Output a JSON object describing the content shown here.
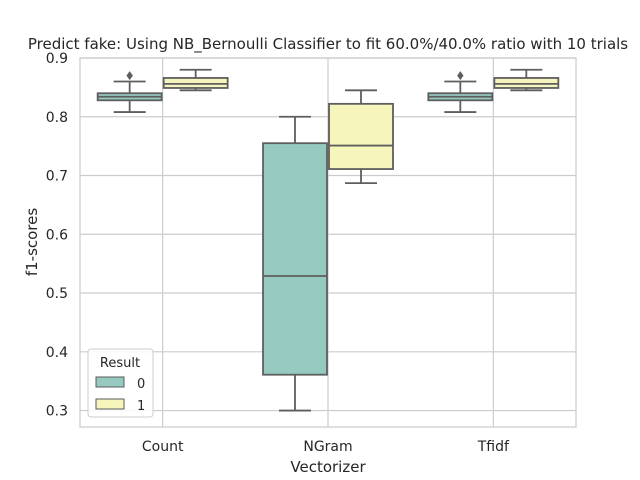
{
  "chart_data": {
    "type": "box",
    "title": "Predict fake: Using NB_Bernoulli Classifier to fit 60.0%/40.0% ratio with 10 trials",
    "xlabel": "Vectorizer",
    "ylabel": "f1-scores",
    "categories": [
      "Count",
      "NGram",
      "Tfidf"
    ],
    "ylim": [
      0.272,
      0.9
    ],
    "yticks": [
      "0.3",
      "0.4",
      "0.5",
      "0.6",
      "0.7",
      "0.8",
      "0.9"
    ],
    "grid": true,
    "legend": {
      "title": "Result",
      "placement": "lower-left"
    },
    "series": [
      {
        "name": "0",
        "color": "#96cac1",
        "boxes": [
          {
            "whisker_low": 0.808,
            "q1": 0.828,
            "median": 0.834,
            "q3": 0.84,
            "whisker_high": 0.86,
            "outliers": [
              0.87
            ]
          },
          {
            "whisker_low": 0.3,
            "q1": 0.361,
            "median": 0.529,
            "q3": 0.755,
            "whisker_high": 0.8,
            "outliers": []
          },
          {
            "whisker_low": 0.808,
            "q1": 0.828,
            "median": 0.834,
            "q3": 0.84,
            "whisker_high": 0.86,
            "outliers": [
              0.87
            ]
          }
        ]
      },
      {
        "name": "1",
        "color": "#f6f6bc",
        "boxes": [
          {
            "whisker_low": 0.845,
            "q1": 0.849,
            "median": 0.856,
            "q3": 0.866,
            "whisker_high": 0.88,
            "outliers": []
          },
          {
            "whisker_low": 0.687,
            "q1": 0.711,
            "median": 0.751,
            "q3": 0.822,
            "whisker_high": 0.845,
            "outliers": []
          },
          {
            "whisker_low": 0.845,
            "q1": 0.849,
            "median": 0.856,
            "q3": 0.866,
            "whisker_high": 0.88,
            "outliers": []
          }
        ]
      }
    ]
  }
}
